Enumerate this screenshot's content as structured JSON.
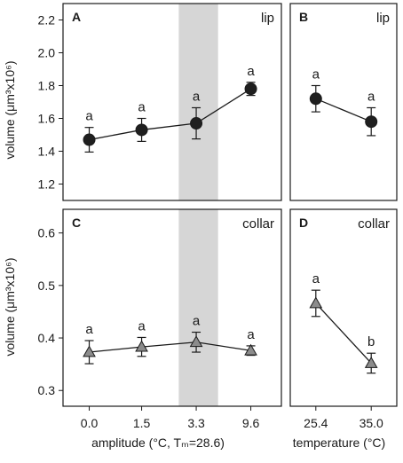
{
  "chart_data": [
    {
      "panel": "A",
      "type": "line",
      "tag": "lip",
      "marker": "circle",
      "categories": [
        "0.0",
        "1.5",
        "3.3",
        "9.6"
      ],
      "values": [
        1.47,
        1.53,
        1.57,
        1.78
      ],
      "errors": [
        0.075,
        0.07,
        0.095,
        0.04
      ],
      "significance": [
        "a",
        "a",
        "a",
        "a"
      ],
      "highlight_category": "3.3",
      "ylim": [
        1.1,
        2.3
      ],
      "yticks": [
        "1.2",
        "1.4",
        "1.6",
        "1.8",
        "2.0",
        "2.2"
      ],
      "ylabel": "volume (μm³x10⁶)"
    },
    {
      "panel": "B",
      "type": "line",
      "tag": "lip",
      "marker": "circle",
      "categories": [
        "25.4",
        "35.0"
      ],
      "values": [
        1.72,
        1.58
      ],
      "errors": [
        0.08,
        0.085
      ],
      "significance": [
        "a",
        "a"
      ],
      "ylim": [
        1.1,
        2.3
      ]
    },
    {
      "panel": "C",
      "type": "line",
      "tag": "collar",
      "marker": "triangle",
      "categories": [
        "0.0",
        "1.5",
        "3.3",
        "9.6"
      ],
      "values": [
        0.373,
        0.383,
        0.392,
        0.376
      ],
      "errors": [
        0.022,
        0.018,
        0.019,
        0.009
      ],
      "significance": [
        "a",
        "a",
        "a",
        "a"
      ],
      "highlight_category": "3.3",
      "ylim": [
        0.27,
        0.645
      ],
      "yticks": [
        "0.3",
        "0.4",
        "0.5",
        "0.6"
      ],
      "ylabel": "volume (μm³x10⁶)",
      "xlabel": "amplitude (°C, Tₘ=28.6)"
    },
    {
      "panel": "D",
      "type": "line",
      "tag": "collar",
      "marker": "triangle",
      "categories": [
        "25.4",
        "35.0"
      ],
      "values": [
        0.466,
        0.352
      ],
      "errors": [
        0.025,
        0.019
      ],
      "significance": [
        "a",
        "b"
      ],
      "ylim": [
        0.27,
        0.645
      ],
      "xlabel": "temperature (°C)"
    }
  ],
  "colors": {
    "highlight": "#d6d6d6",
    "circle_marker": "#1f1f1f",
    "triangle_marker": "#8c8c8c",
    "line": "#1a1a1a",
    "frame": "#1a1a1a"
  }
}
